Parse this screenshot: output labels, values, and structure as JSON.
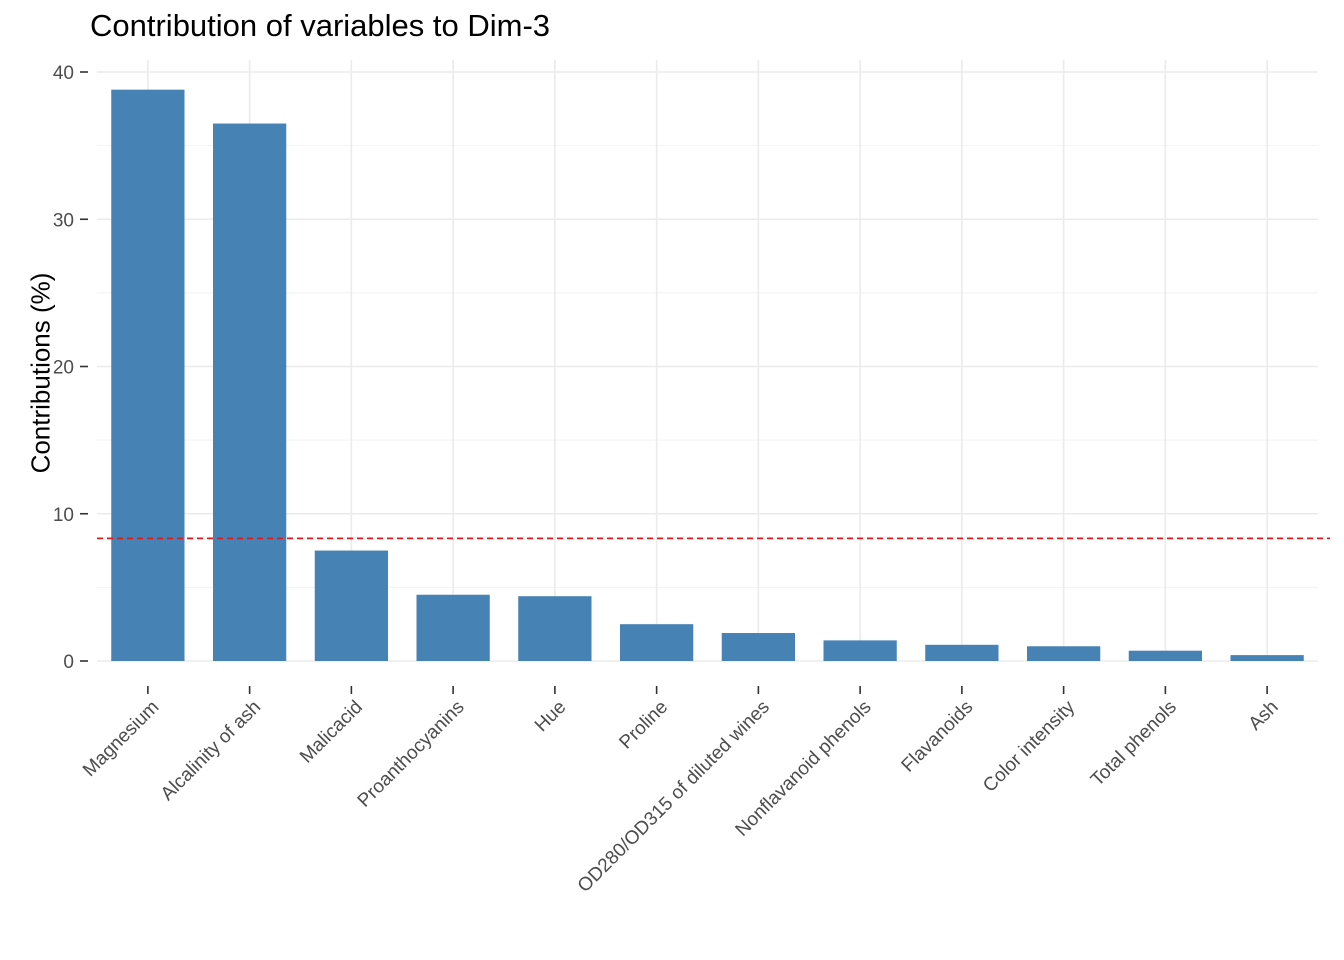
{
  "chart_data": {
    "type": "bar",
    "title": "Contribution of variables to Dim-3",
    "xlabel": "",
    "ylabel": "Contributions (%)",
    "ylim": [
      0,
      40
    ],
    "yticks": [
      0,
      10,
      20,
      30,
      40
    ],
    "categories": [
      "Magnesium",
      "Alcalinity of ash",
      "Malicacid",
      "Proanthocyanins",
      "Hue",
      "Proline",
      "OD280/OD315 of diluted wines",
      "Nonflavanoid phenols",
      "Flavanoids",
      "Color intensity",
      "Total phenols",
      "Ash"
    ],
    "values": [
      38.8,
      36.5,
      7.5,
      4.5,
      4.4,
      2.5,
      1.9,
      1.4,
      1.1,
      1.0,
      0.7,
      0.4
    ],
    "reference_line": 8.33,
    "grid": true,
    "legend": "none",
    "bar_color": "#4682b4",
    "reference_line_color": "#e31a1c"
  }
}
